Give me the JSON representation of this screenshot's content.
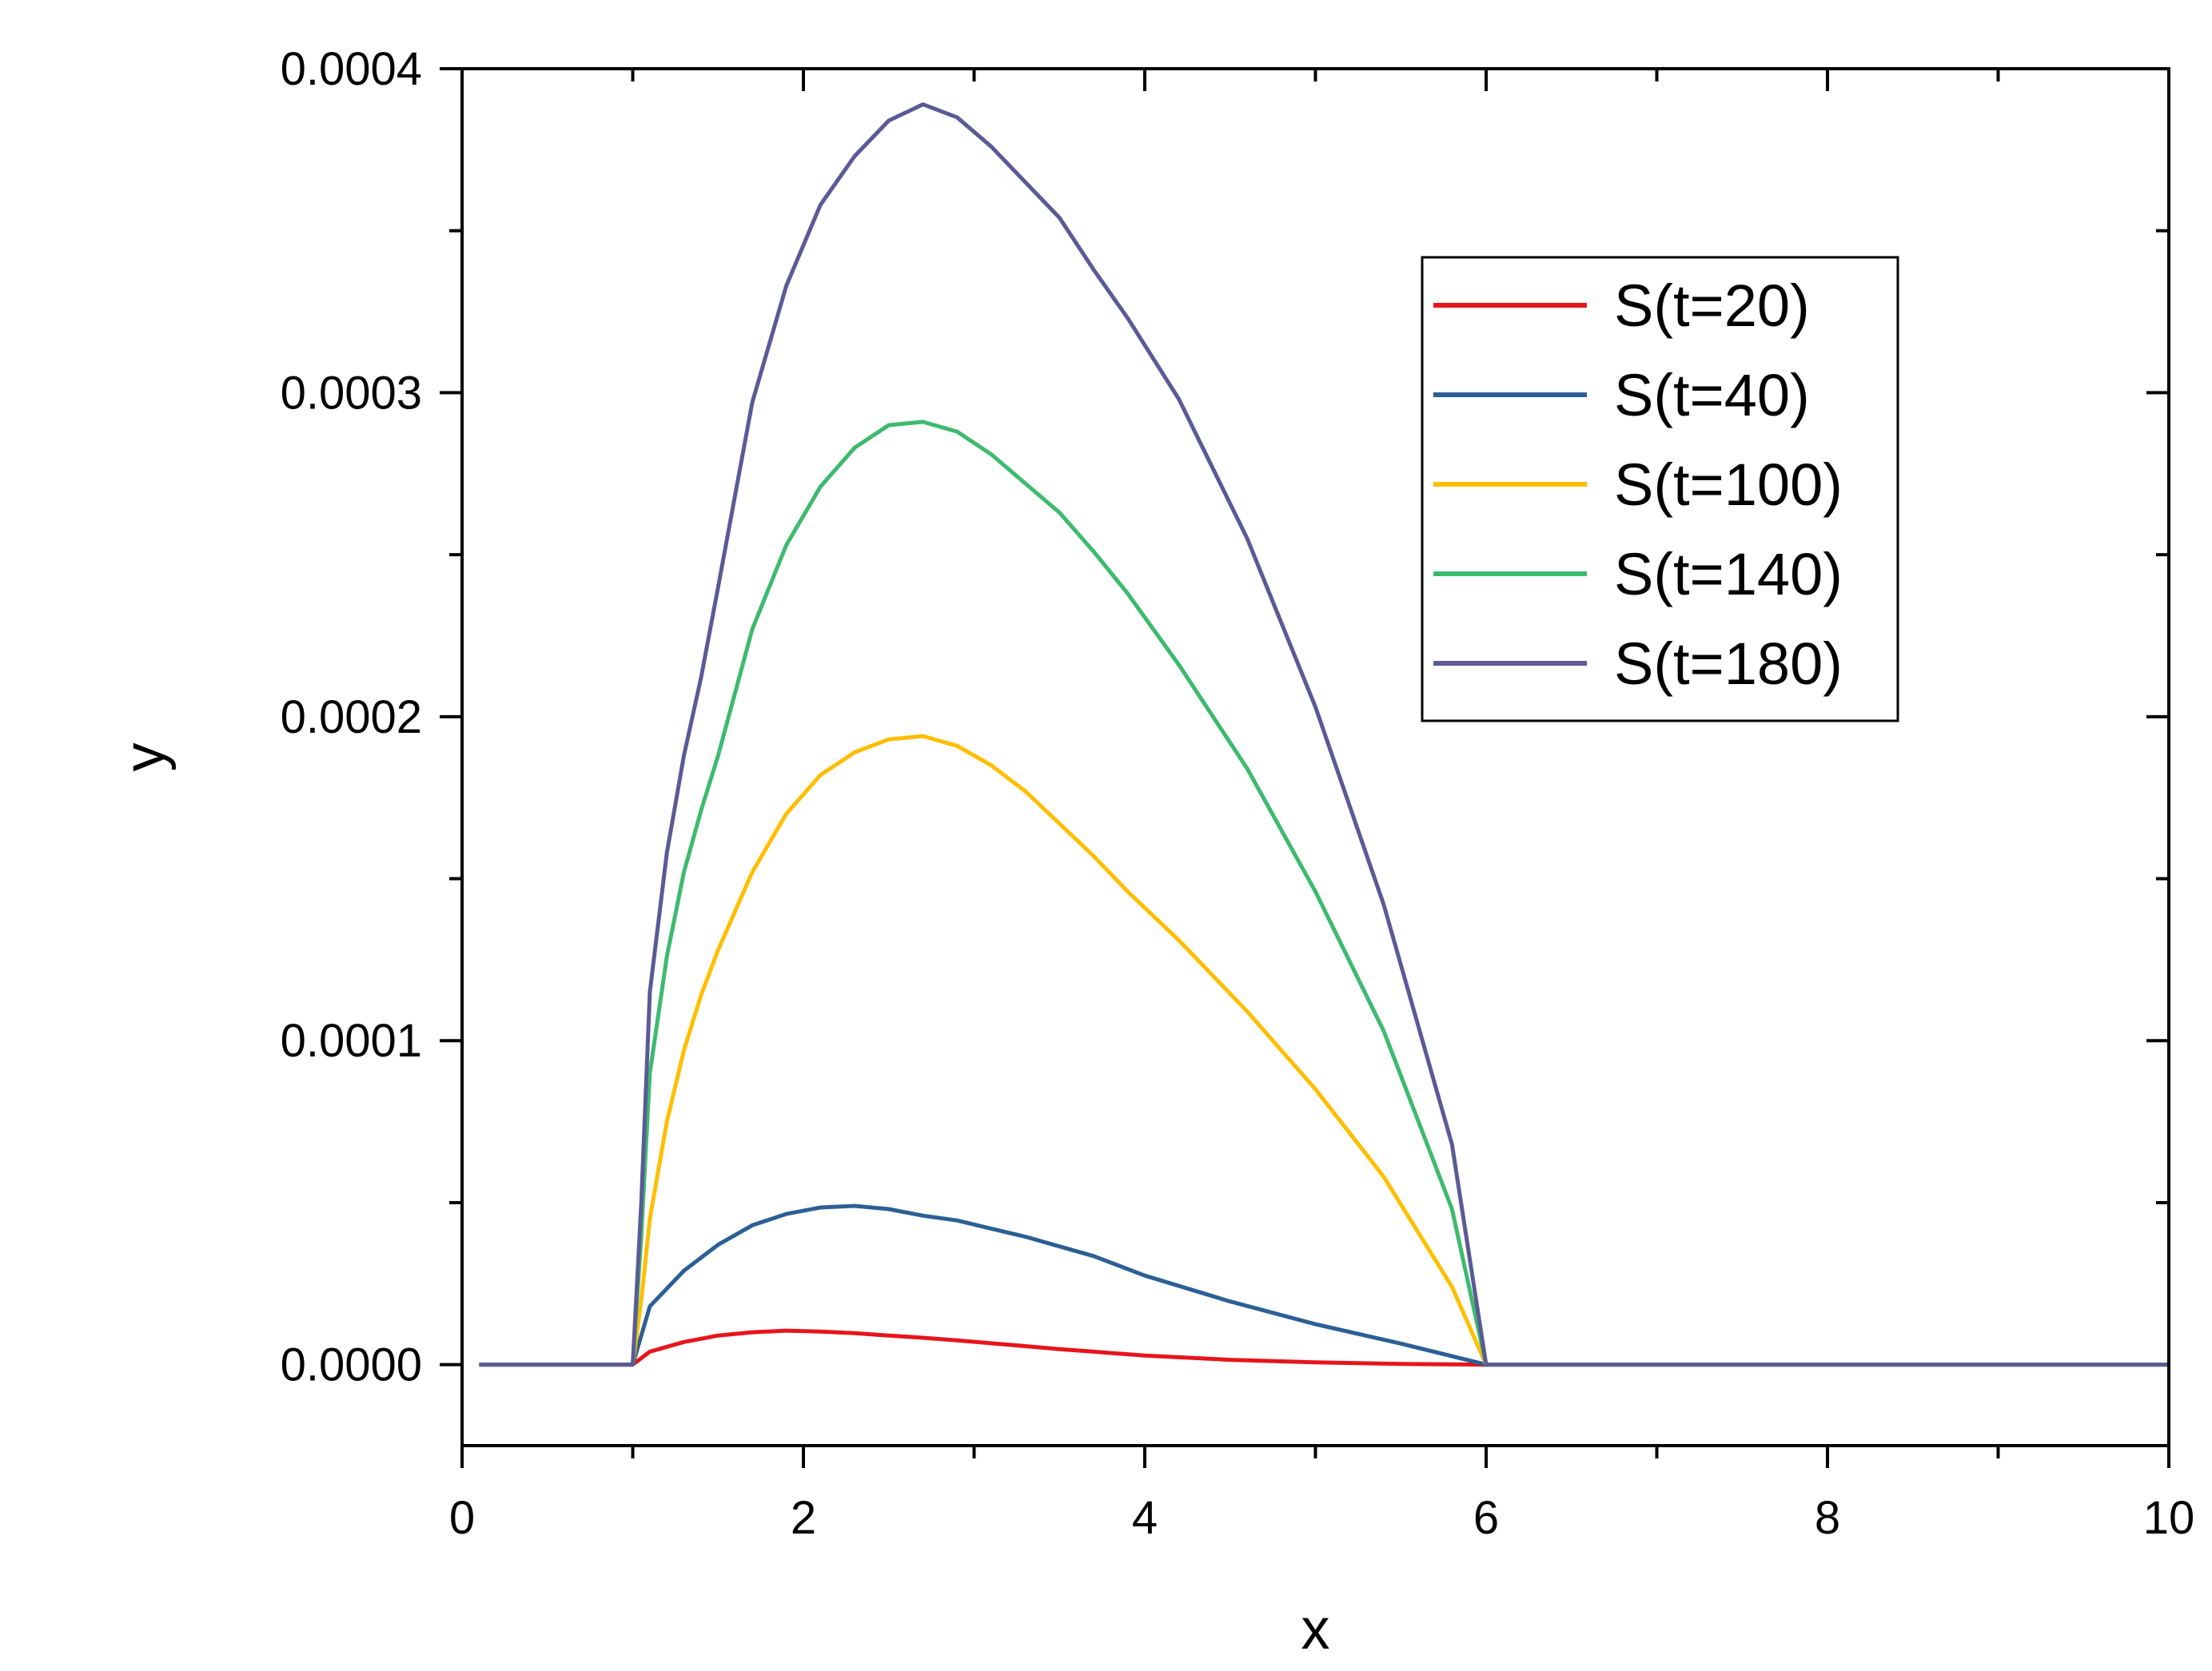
{
  "chart_data": {
    "type": "line",
    "title": "",
    "xlabel": "x",
    "ylabel": "y",
    "xlim": [
      0,
      10
    ],
    "ylim": [
      -2.5e-05,
      0.0004
    ],
    "xticks": [
      0,
      2,
      4,
      6,
      8,
      10
    ],
    "xtick_labels": [
      "0",
      "2",
      "4",
      "6",
      "8",
      "10"
    ],
    "yticks": [
      0.0,
      0.0001,
      0.0002,
      0.0003,
      0.0004
    ],
    "ytick_labels": [
      "0.0000",
      "0.0001",
      "0.0002",
      "0.0003",
      "0.0004"
    ],
    "legend_position": "top-right",
    "series": [
      {
        "name": "S(t=20)",
        "color": "#e8141b",
        "x": [
          0.1,
          1.0,
          1.1,
          1.3,
          1.5,
          1.7,
          1.9,
          2.1,
          2.3,
          2.5,
          2.7,
          2.9,
          3.1,
          3.3,
          3.5,
          3.7,
          4.0,
          4.5,
          5.0,
          5.5,
          6.0,
          10.0
        ],
        "y": [
          0,
          0,
          4e-06,
          7e-06,
          9e-06,
          1e-05,
          1.05e-05,
          1.02e-05,
          9.7e-06,
          9e-06,
          8.3e-06,
          7.5e-06,
          6.6e-06,
          5.7e-06,
          4.8e-06,
          4e-06,
          2.8e-06,
          1.5e-06,
          7e-07,
          2e-07,
          0,
          0
        ]
      },
      {
        "name": "S(t=40)",
        "color": "#2b5f95",
        "x": [
          0.1,
          1.0,
          1.1,
          1.3,
          1.5,
          1.7,
          1.9,
          2.1,
          2.3,
          2.5,
          2.7,
          2.9,
          3.1,
          3.3,
          3.5,
          3.7,
          4.0,
          4.5,
          5.0,
          5.5,
          6.0,
          10.0
        ],
        "y": [
          0,
          0,
          1.8e-05,
          2.9e-05,
          3.7e-05,
          4.3e-05,
          4.65e-05,
          4.85e-05,
          4.9e-05,
          4.8e-05,
          4.6e-05,
          4.45e-05,
          4.2e-05,
          3.95e-05,
          3.65e-05,
          3.35e-05,
          2.75e-05,
          1.95e-05,
          1.25e-05,
          6.5e-06,
          0,
          0
        ]
      },
      {
        "name": "S(t=100)",
        "color": "#ffbe00",
        "x": [
          0.1,
          1.0,
          1.05,
          1.1,
          1.2,
          1.3,
          1.4,
          1.5,
          1.7,
          1.9,
          2.1,
          2.3,
          2.5,
          2.7,
          2.9,
          3.1,
          3.3,
          3.5,
          3.7,
          3.9,
          4.2,
          4.6,
          5.0,
          5.4,
          5.8,
          6.0,
          10.0
        ],
        "y": [
          0,
          0,
          2e-05,
          4.5e-05,
          7.5e-05,
          9.7e-05,
          0.000114,
          0.000128,
          0.000152,
          0.00017,
          0.000182,
          0.000189,
          0.000193,
          0.000194,
          0.000191,
          0.000185,
          0.000177,
          0.000167,
          0.000157,
          0.000146,
          0.000131,
          0.000109,
          8.5e-05,
          5.8e-05,
          2.4e-05,
          0,
          0
        ]
      },
      {
        "name": "S(t=140)",
        "color": "#3dba6e",
        "x": [
          0.1,
          1.0,
          1.05,
          1.1,
          1.2,
          1.3,
          1.4,
          1.5,
          1.7,
          1.9,
          2.1,
          2.3,
          2.5,
          2.7,
          2.9,
          3.1,
          3.3,
          3.5,
          3.7,
          3.9,
          4.2,
          4.6,
          5.0,
          5.4,
          5.8,
          6.0,
          10.0
        ],
        "y": [
          0,
          0,
          4e-05,
          9e-05,
          0.000126,
          0.000152,
          0.000171,
          0.000188,
          0.000227,
          0.000253,
          0.000271,
          0.000283,
          0.00029,
          0.000291,
          0.000288,
          0.000281,
          0.000272,
          0.000263,
          0.000251,
          0.000238,
          0.000216,
          0.000184,
          0.000146,
          0.000103,
          4.8e-05,
          0,
          0
        ]
      },
      {
        "name": "S(t=180)",
        "color": "#5a5a96",
        "x": [
          0.1,
          1.0,
          1.05,
          1.1,
          1.2,
          1.3,
          1.4,
          1.5,
          1.7,
          1.9,
          2.1,
          2.3,
          2.5,
          2.7,
          2.9,
          3.1,
          3.3,
          3.5,
          3.7,
          3.9,
          4.2,
          4.6,
          5.0,
          5.4,
          5.8,
          6.0,
          10.0
        ],
        "y": [
          0,
          0,
          5e-05,
          0.000115,
          0.000158,
          0.000188,
          0.000212,
          0.00024,
          0.000297,
          0.000333,
          0.000358,
          0.000373,
          0.000384,
          0.000389,
          0.000385,
          0.000376,
          0.000365,
          0.000354,
          0.000338,
          0.000323,
          0.000298,
          0.000255,
          0.000203,
          0.000142,
          6.8e-05,
          0,
          0
        ]
      }
    ]
  }
}
